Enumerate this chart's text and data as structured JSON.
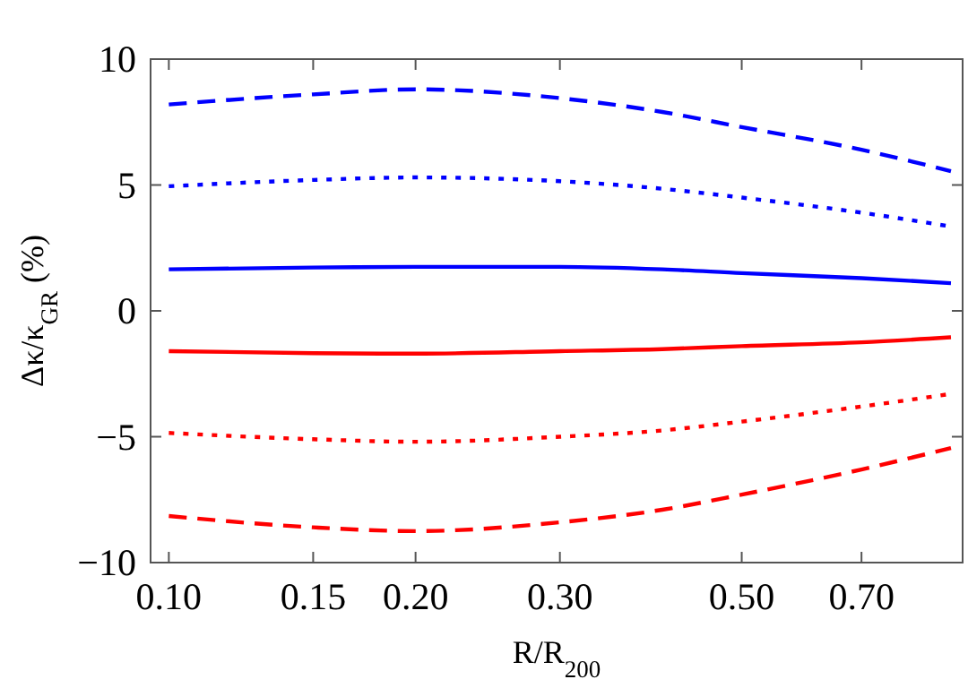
{
  "chart_data": {
    "type": "line",
    "xlabel": "R/R$_{200}$",
    "ylabel": "Δκ/κ$_{GR}$ (%)",
    "log": "x",
    "x": [
      0.1,
      0.15,
      0.2,
      0.3,
      0.4,
      0.5,
      0.7,
      0.9
    ],
    "xlim": [
      0.095,
      0.93
    ],
    "xticks": [
      {
        "value": 0.1,
        "label": "0.10"
      },
      0.15,
      {
        "value": 0.2,
        "label": "0.20"
      },
      {
        "value": 0.3,
        "label": "0.30"
      },
      {
        "value": 0.5,
        "label": "0.50"
      },
      {
        "value": 0.7,
        "label": "0.70"
      }
    ],
    "ylim": [
      -10,
      10
    ],
    "yticks": [
      -10,
      -5,
      0,
      5,
      10
    ],
    "grid": false,
    "marker": "none",
    "series": [
      {
        "color": "#0000ff",
        "line_style": "dashed",
        "values": [
          8.2,
          8.6,
          8.8,
          8.45,
          7.9,
          7.3,
          6.4,
          5.55
        ]
      },
      {
        "color": "#0000ff",
        "line_style": "dotted",
        "values": [
          4.95,
          5.2,
          5.3,
          5.15,
          4.85,
          4.5,
          3.9,
          3.35
        ]
      },
      {
        "color": "#0000ff",
        "line_style": "solid",
        "values": [
          1.65,
          1.72,
          1.75,
          1.75,
          1.65,
          1.5,
          1.3,
          1.1
        ]
      },
      {
        "color": "#ff0000",
        "line_style": "solid",
        "values": [
          -1.6,
          -1.68,
          -1.7,
          -1.6,
          -1.52,
          -1.4,
          -1.25,
          -1.05
        ]
      },
      {
        "color": "#ff0000",
        "line_style": "dotted",
        "values": [
          -4.85,
          -5.1,
          -5.2,
          -5.0,
          -4.75,
          -4.4,
          -3.8,
          -3.3
        ]
      },
      {
        "color": "#ff0000",
        "line_style": "dashed",
        "values": [
          -8.15,
          -8.6,
          -8.75,
          -8.4,
          -7.9,
          -7.3,
          -6.3,
          -5.45
        ]
      }
    ]
  }
}
